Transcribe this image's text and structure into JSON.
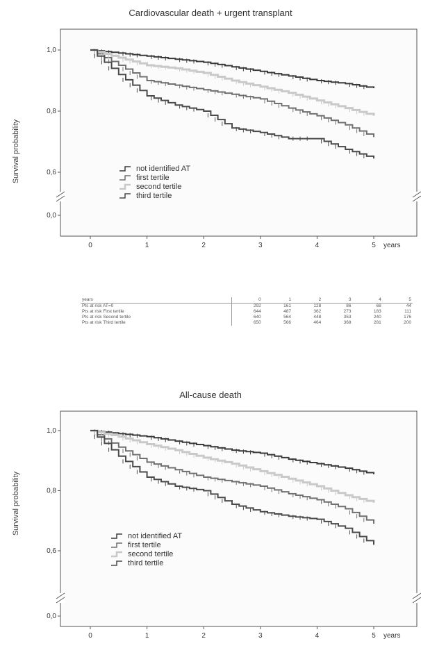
{
  "chart_data": [
    {
      "type": "line",
      "title": "Cardiovascular death + urgent transplant",
      "ylabel": "Survival probability",
      "xlabel": "years",
      "x_ticks": [
        "0",
        "1",
        "2",
        "3",
        "4",
        "5"
      ],
      "y_ticks": [
        "0,0",
        "0,6",
        "0,8",
        "1,0"
      ],
      "axis_break": true,
      "legend_position": "bottom-left",
      "series": [
        {
          "name": "not identified AT",
          "color": "#3a3a3a",
          "x": [
            0,
            0.5,
            1,
            1.5,
            2,
            2.5,
            3,
            3.5,
            4,
            4.5,
            5
          ],
          "y": [
            1.0,
            0.99,
            0.98,
            0.97,
            0.96,
            0.945,
            0.93,
            0.915,
            0.9,
            0.89,
            0.875
          ]
        },
        {
          "name": "first tertile",
          "color": "#707070",
          "x": [
            0,
            0.5,
            1,
            1.5,
            2,
            2.5,
            3,
            3.5,
            4,
            4.5,
            5
          ],
          "y": [
            1.0,
            0.95,
            0.9,
            0.885,
            0.87,
            0.855,
            0.84,
            0.81,
            0.785,
            0.755,
            0.715
          ]
        },
        {
          "name": "second tertile",
          "color": "#c9c9c9",
          "x": [
            0,
            0.5,
            1,
            1.5,
            2,
            2.5,
            3,
            3.5,
            4,
            4.5,
            5
          ],
          "y": [
            1.0,
            0.975,
            0.95,
            0.94,
            0.925,
            0.9,
            0.88,
            0.86,
            0.835,
            0.81,
            0.785
          ]
        },
        {
          "name": "third tertile",
          "color": "#4a4a4a",
          "x": [
            0,
            0.5,
            1,
            1.5,
            2,
            2.5,
            3,
            3.5,
            4,
            4.5,
            5
          ],
          "y": [
            1.0,
            0.92,
            0.85,
            0.82,
            0.8,
            0.745,
            0.73,
            0.71,
            0.71,
            0.675,
            0.645
          ]
        }
      ]
    },
    {
      "type": "line",
      "title": "All-cause death",
      "ylabel": "Survival probability",
      "xlabel": "years",
      "x_ticks": [
        "0",
        "1",
        "2",
        "3",
        "4",
        "5"
      ],
      "y_ticks": [
        "0,0",
        "0,6",
        "0,8",
        "1,0"
      ],
      "axis_break": true,
      "legend_position": "bottom-left",
      "series": [
        {
          "name": "not identified AT",
          "color": "#3a3a3a",
          "x": [
            0,
            0.5,
            1,
            1.5,
            2,
            2.5,
            3,
            3.5,
            4,
            4.5,
            5
          ],
          "y": [
            1.0,
            0.99,
            0.98,
            0.965,
            0.95,
            0.935,
            0.925,
            0.905,
            0.89,
            0.875,
            0.855
          ]
        },
        {
          "name": "first tertile",
          "color": "#707070",
          "x": [
            0,
            0.5,
            1,
            1.5,
            2,
            2.5,
            3,
            3.5,
            4,
            4.5,
            5
          ],
          "y": [
            1.0,
            0.945,
            0.895,
            0.87,
            0.845,
            0.83,
            0.815,
            0.79,
            0.77,
            0.74,
            0.69
          ]
        },
        {
          "name": "second tertile",
          "color": "#c9c9c9",
          "x": [
            0,
            0.5,
            1,
            1.5,
            2,
            2.5,
            3,
            3.5,
            4,
            4.5,
            5
          ],
          "y": [
            1.0,
            0.98,
            0.955,
            0.935,
            0.91,
            0.89,
            0.865,
            0.84,
            0.815,
            0.785,
            0.76
          ]
        },
        {
          "name": "third tertile",
          "color": "#4a4a4a",
          "x": [
            0,
            0.5,
            1,
            1.5,
            2,
            2.5,
            3,
            3.5,
            4,
            4.5,
            5
          ],
          "y": [
            1.0,
            0.915,
            0.845,
            0.815,
            0.8,
            0.755,
            0.73,
            0.715,
            0.705,
            0.675,
            0.62
          ]
        }
      ]
    },
    {
      "type": "table",
      "columns": [
        "years",
        "0",
        "1",
        "2",
        "3",
        "4",
        "5"
      ],
      "rows": [
        [
          "Pts at risk AT=0",
          "292",
          "161",
          "128",
          "86",
          "68",
          "44"
        ],
        [
          "Pts at risk First tertile",
          "644",
          "487",
          "362",
          "273",
          "183",
          "111"
        ],
        [
          "Pts at risk Second tertile",
          "640",
          "564",
          "448",
          "353",
          "240",
          "176"
        ],
        [
          "Pts at risk Third tertile",
          "650",
          "566",
          "464",
          "368",
          "281",
          "200"
        ]
      ]
    }
  ]
}
